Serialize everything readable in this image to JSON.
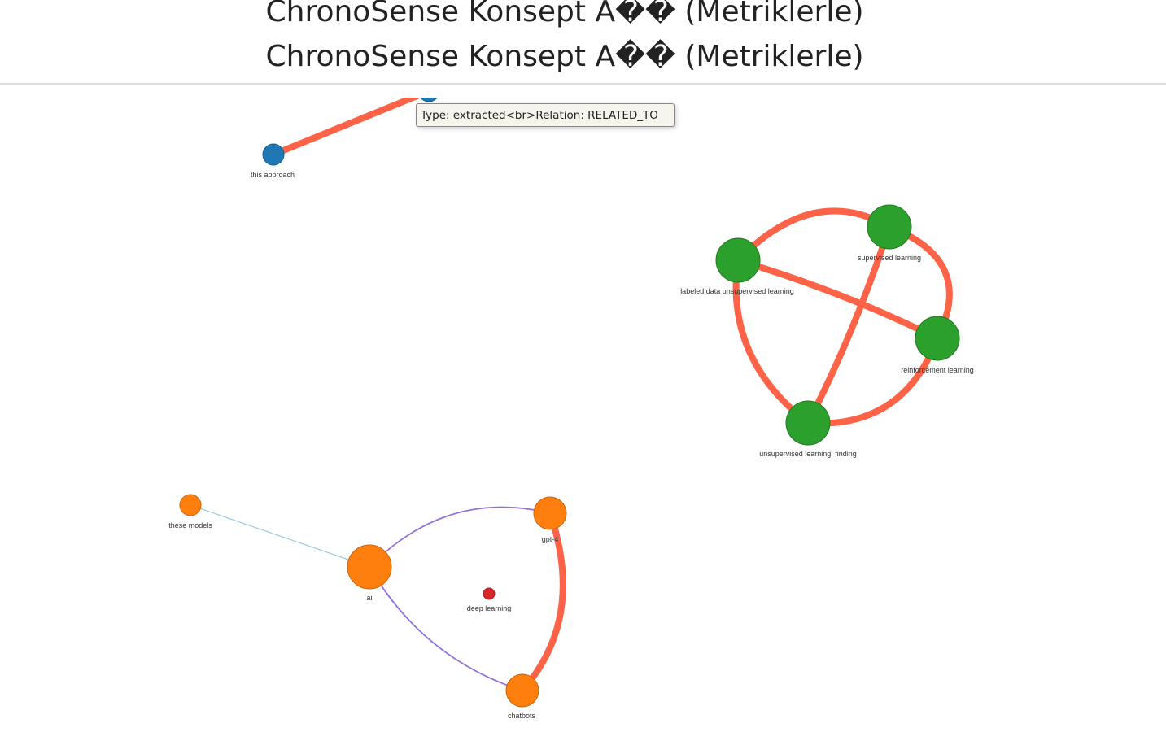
{
  "header": {
    "title": "ChronoSense Konsept A�� (Metriklerle)",
    "title_repeat": "ChronoSense Konsept A�� (Metriklerle)"
  },
  "tooltip": {
    "text": "Type: extracted<br>Relation: RELATED_TO"
  },
  "colors": {
    "blue": "#1f77b4",
    "green": "#2ca02c",
    "orange": "#ff7f0e",
    "red": "#d62728",
    "edge_strong": "#ff6347",
    "edge_purple": "#9370db",
    "edge_light": "#9ecae1"
  },
  "graph": {
    "nodes": [
      {
        "id": "top",
        "label": ""
      },
      {
        "id": "this_approach",
        "label": "this approach"
      },
      {
        "id": "labeled",
        "label": "labeled data unsupervised learning"
      },
      {
        "id": "supervised",
        "label": "supervised learning"
      },
      {
        "id": "reinforcement",
        "label": "reinforcement learning"
      },
      {
        "id": "unsupervised",
        "label": "unsupervised learning: finding"
      },
      {
        "id": "these_models",
        "label": "these models"
      },
      {
        "id": "ai",
        "label": "ai"
      },
      {
        "id": "gpt4",
        "label": "gpt-4"
      },
      {
        "id": "chatbots",
        "label": "chatbots"
      },
      {
        "id": "deep_learning",
        "label": "deep learning"
      }
    ]
  }
}
